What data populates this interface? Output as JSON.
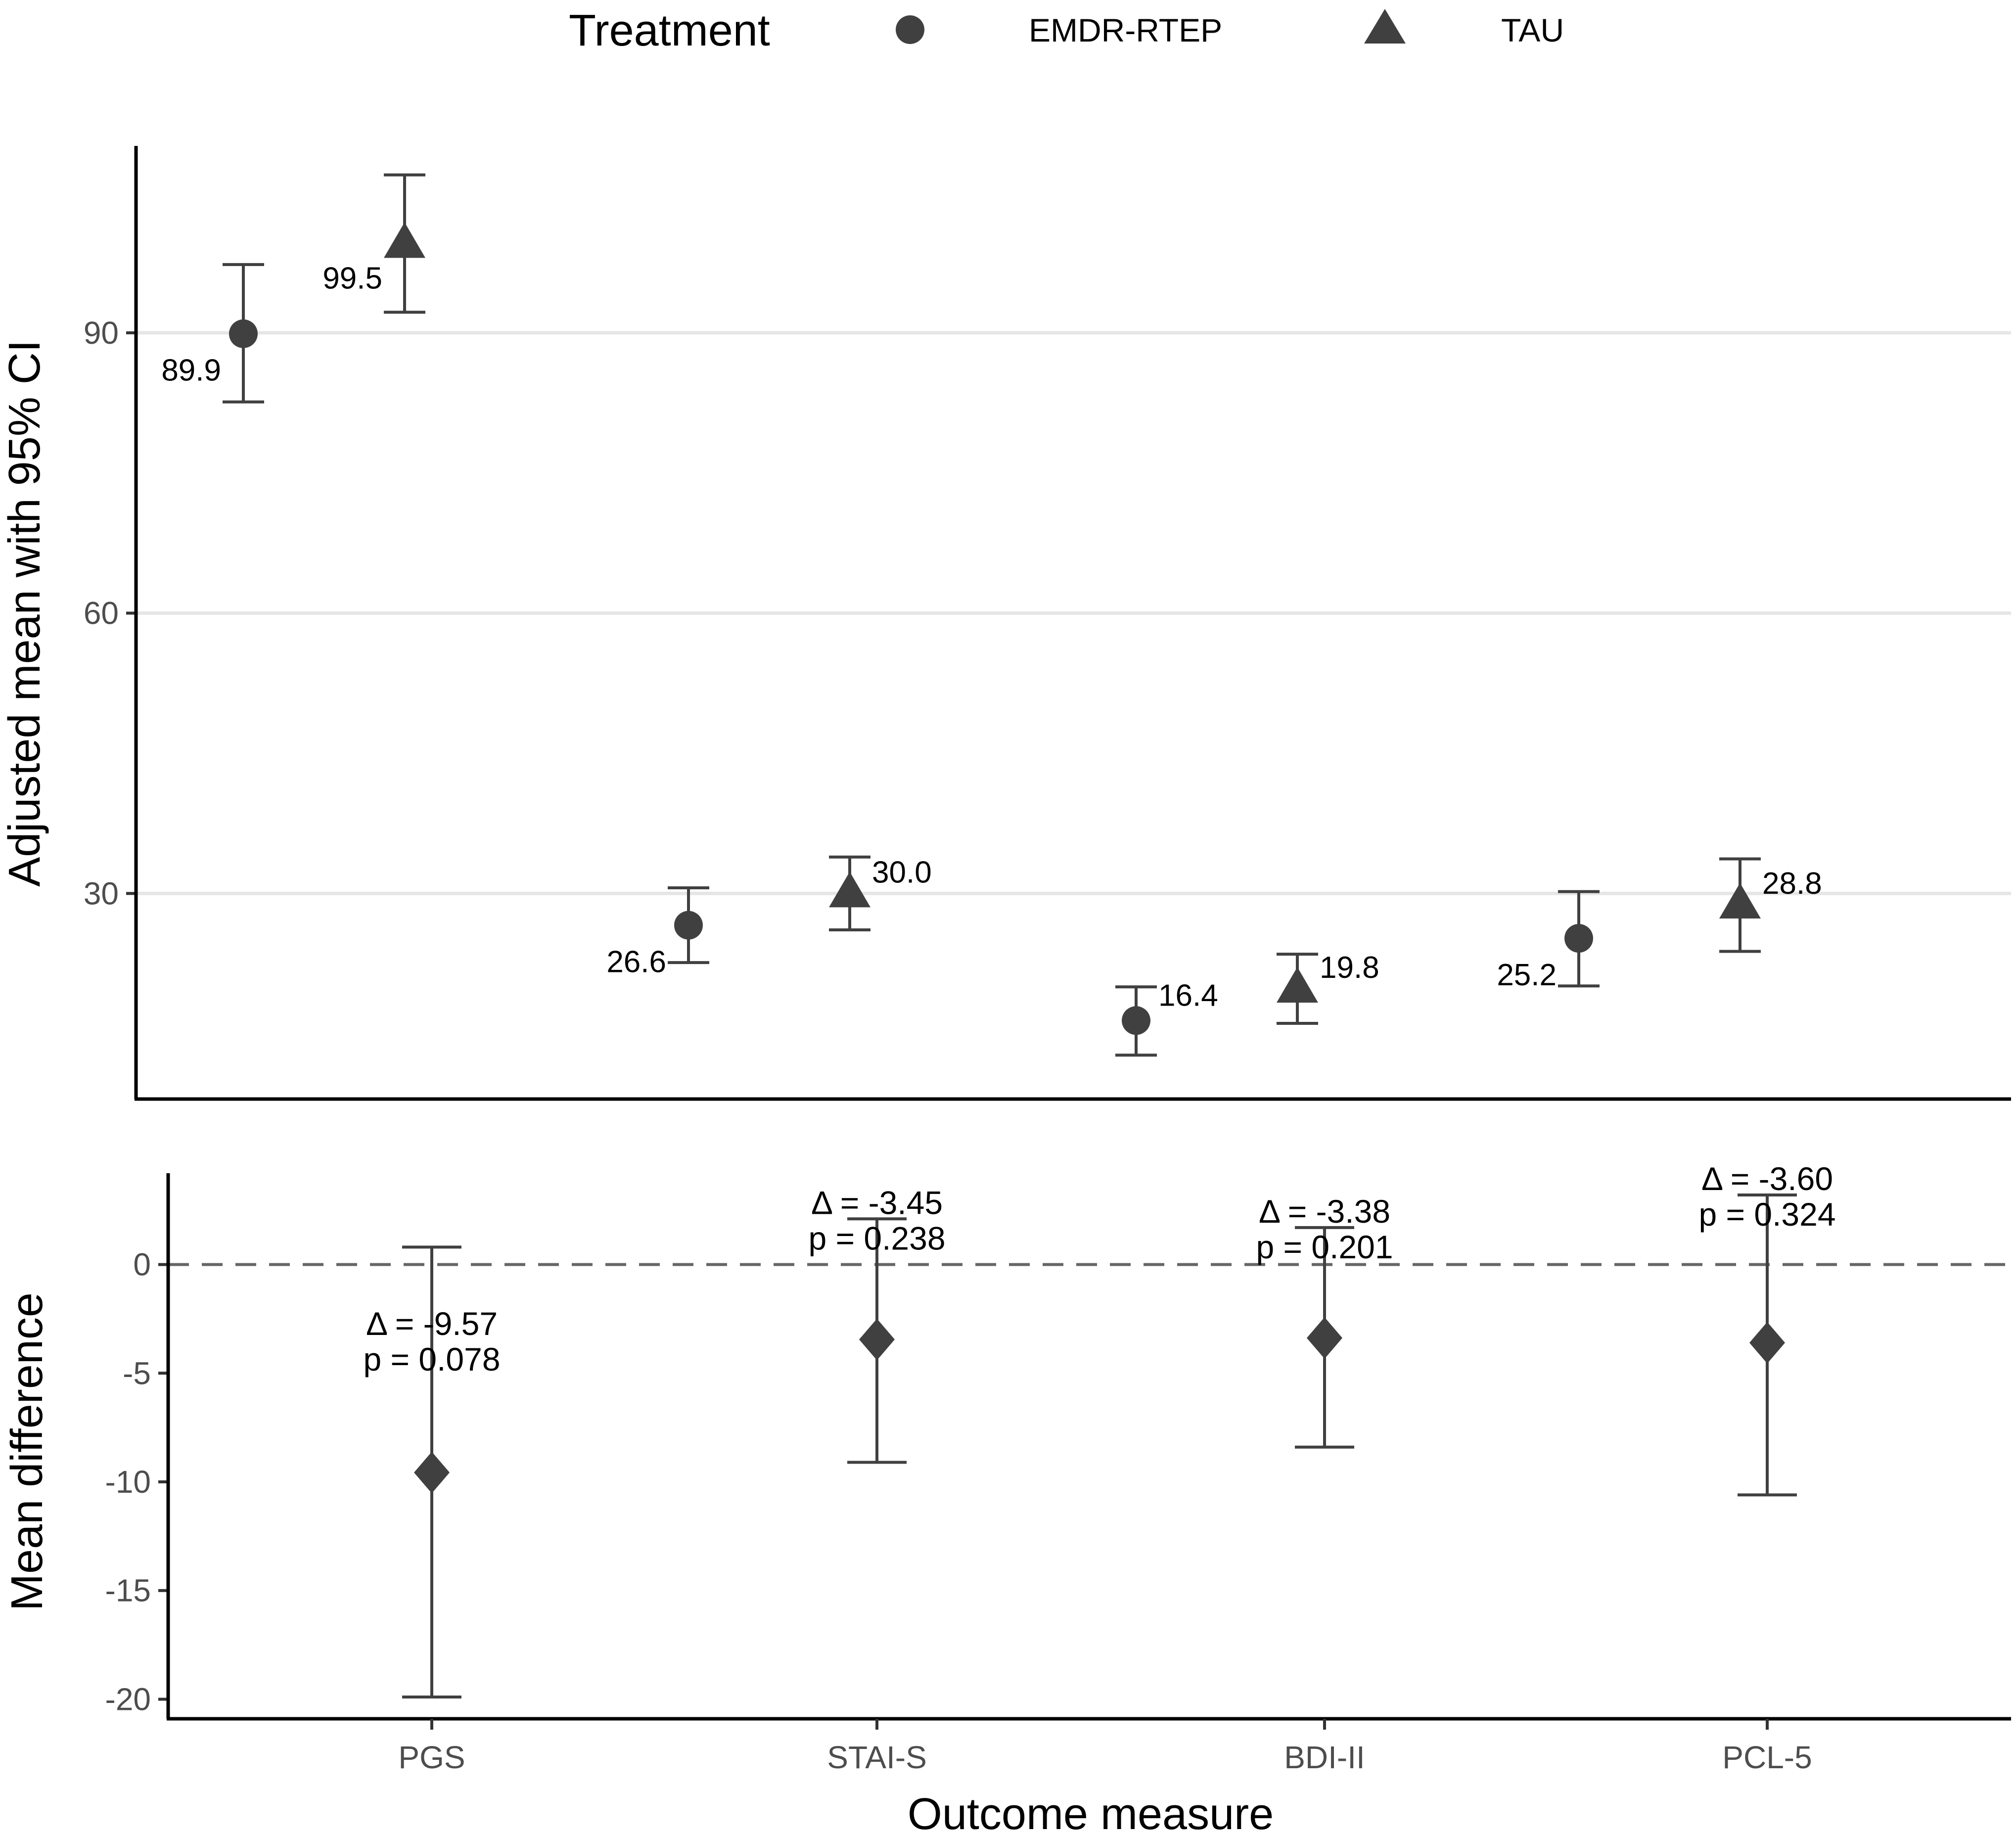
{
  "legend": {
    "title": "Treatment",
    "entries": [
      {
        "label": "EMDR-RTEP",
        "shape": "circle"
      },
      {
        "label": "TAU",
        "shape": "triangle"
      }
    ]
  },
  "colors": {
    "marker": "#404040",
    "grid": "#e6e6e6",
    "axis": "#000000",
    "zero_line": "#666666"
  },
  "chart_data": [
    {
      "type": "scatter",
      "title": "",
      "xlabel": "",
      "ylabel": "Adjusted mean with 95% CI",
      "categories": [
        "PGS",
        "STAI-S",
        "BDI-II",
        "PCL-5"
      ],
      "ylim": [
        8,
        110
      ],
      "yticks": [
        30,
        60,
        90
      ],
      "grid": "horizontal major",
      "series": [
        {
          "name": "EMDR-RTEP",
          "marker": "circle",
          "values": [
            89.9,
            26.6,
            16.4,
            25.2
          ],
          "ci_low": [
            82.6,
            22.6,
            12.7,
            20.1
          ],
          "ci_high": [
            97.3,
            30.6,
            20.0,
            30.2
          ],
          "labels": [
            "89.9",
            "26.6",
            "16.4",
            "25.2"
          ]
        },
        {
          "name": "TAU",
          "marker": "triangle",
          "values": [
            99.5,
            30.0,
            19.8,
            28.8
          ],
          "ci_low": [
            92.2,
            26.1,
            16.1,
            23.8
          ],
          "ci_high": [
            106.9,
            33.9,
            23.5,
            33.7
          ],
          "labels": [
            "99.5",
            "30.0",
            "19.8",
            "28.8"
          ]
        }
      ]
    },
    {
      "type": "scatter",
      "title": "",
      "xlabel": "Outcome measure",
      "ylabel": "Mean difference",
      "categories": [
        "PGS",
        "STAI-S",
        "BDI-II",
        "PCL-5"
      ],
      "ylim": [
        -20.9,
        4.2
      ],
      "yticks": [
        -20,
        -15,
        -10,
        -5,
        0
      ],
      "ytick_labels": [
        "-20",
        "-15",
        "-10",
        "-5",
        "0"
      ],
      "reference_line": 0,
      "series": [
        {
          "name": "Mean difference",
          "marker": "diamond",
          "values": [
            -9.57,
            -3.45,
            -3.38,
            -3.6
          ],
          "ci_low": [
            -19.9,
            -9.1,
            -8.4,
            -10.6
          ],
          "ci_high": [
            0.8,
            2.1,
            1.7,
            3.2
          ],
          "delta_labels": [
            "Δ = -9.57",
            "Δ = -3.45",
            "Δ = -3.38",
            "Δ = -3.60"
          ],
          "p_labels": [
            "p = 0.078",
            "p = 0.238",
            "p = 0.201",
            "p = 0.324"
          ]
        }
      ]
    }
  ]
}
